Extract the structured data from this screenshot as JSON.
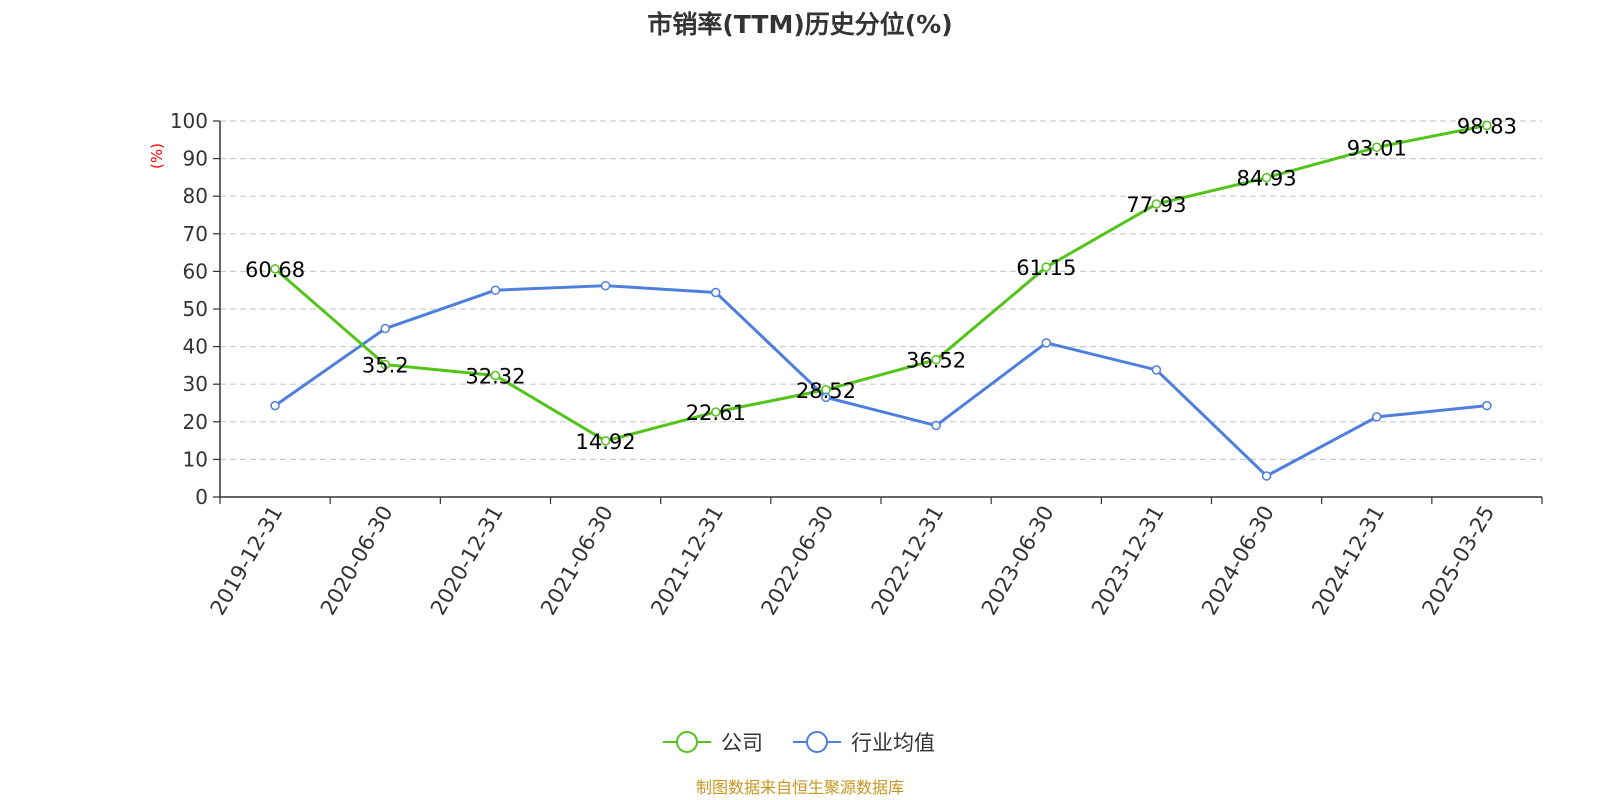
{
  "chart_data": {
    "type": "line",
    "title": "市销率(TTM)历史分位(%)",
    "ylabel": "(%)",
    "xlabel": "",
    "ylim": [
      0,
      100
    ],
    "yticks": [
      0,
      10,
      20,
      30,
      40,
      50,
      60,
      70,
      80,
      90,
      100
    ],
    "categories": [
      "2019-12-31",
      "2020-06-30",
      "2020-12-31",
      "2021-06-30",
      "2021-12-31",
      "2022-06-30",
      "2022-12-31",
      "2023-06-30",
      "2023-12-31",
      "2024-06-30",
      "2024-12-31",
      "2025-03-25"
    ],
    "series": [
      {
        "name": "公司",
        "color": "#52c41a",
        "show_labels": true,
        "values": [
          60.68,
          35.2,
          32.32,
          14.92,
          22.61,
          28.52,
          36.52,
          61.15,
          77.93,
          84.93,
          93.01,
          98.83
        ]
      },
      {
        "name": "行业均值",
        "color": "#4e7fdc",
        "show_labels": false,
        "values": [
          24.3,
          44.8,
          55.0,
          56.2,
          54.4,
          26.5,
          19.0,
          41.0,
          33.8,
          5.6,
          21.3,
          24.3
        ]
      }
    ],
    "grid": true,
    "legend_position": "bottom"
  },
  "source_text": "制图数据来自恒生聚源数据库",
  "colors": {
    "axis": "#333333",
    "grid": "#cccccc",
    "ylabel": "#ff0000",
    "source": "#c8961e"
  }
}
